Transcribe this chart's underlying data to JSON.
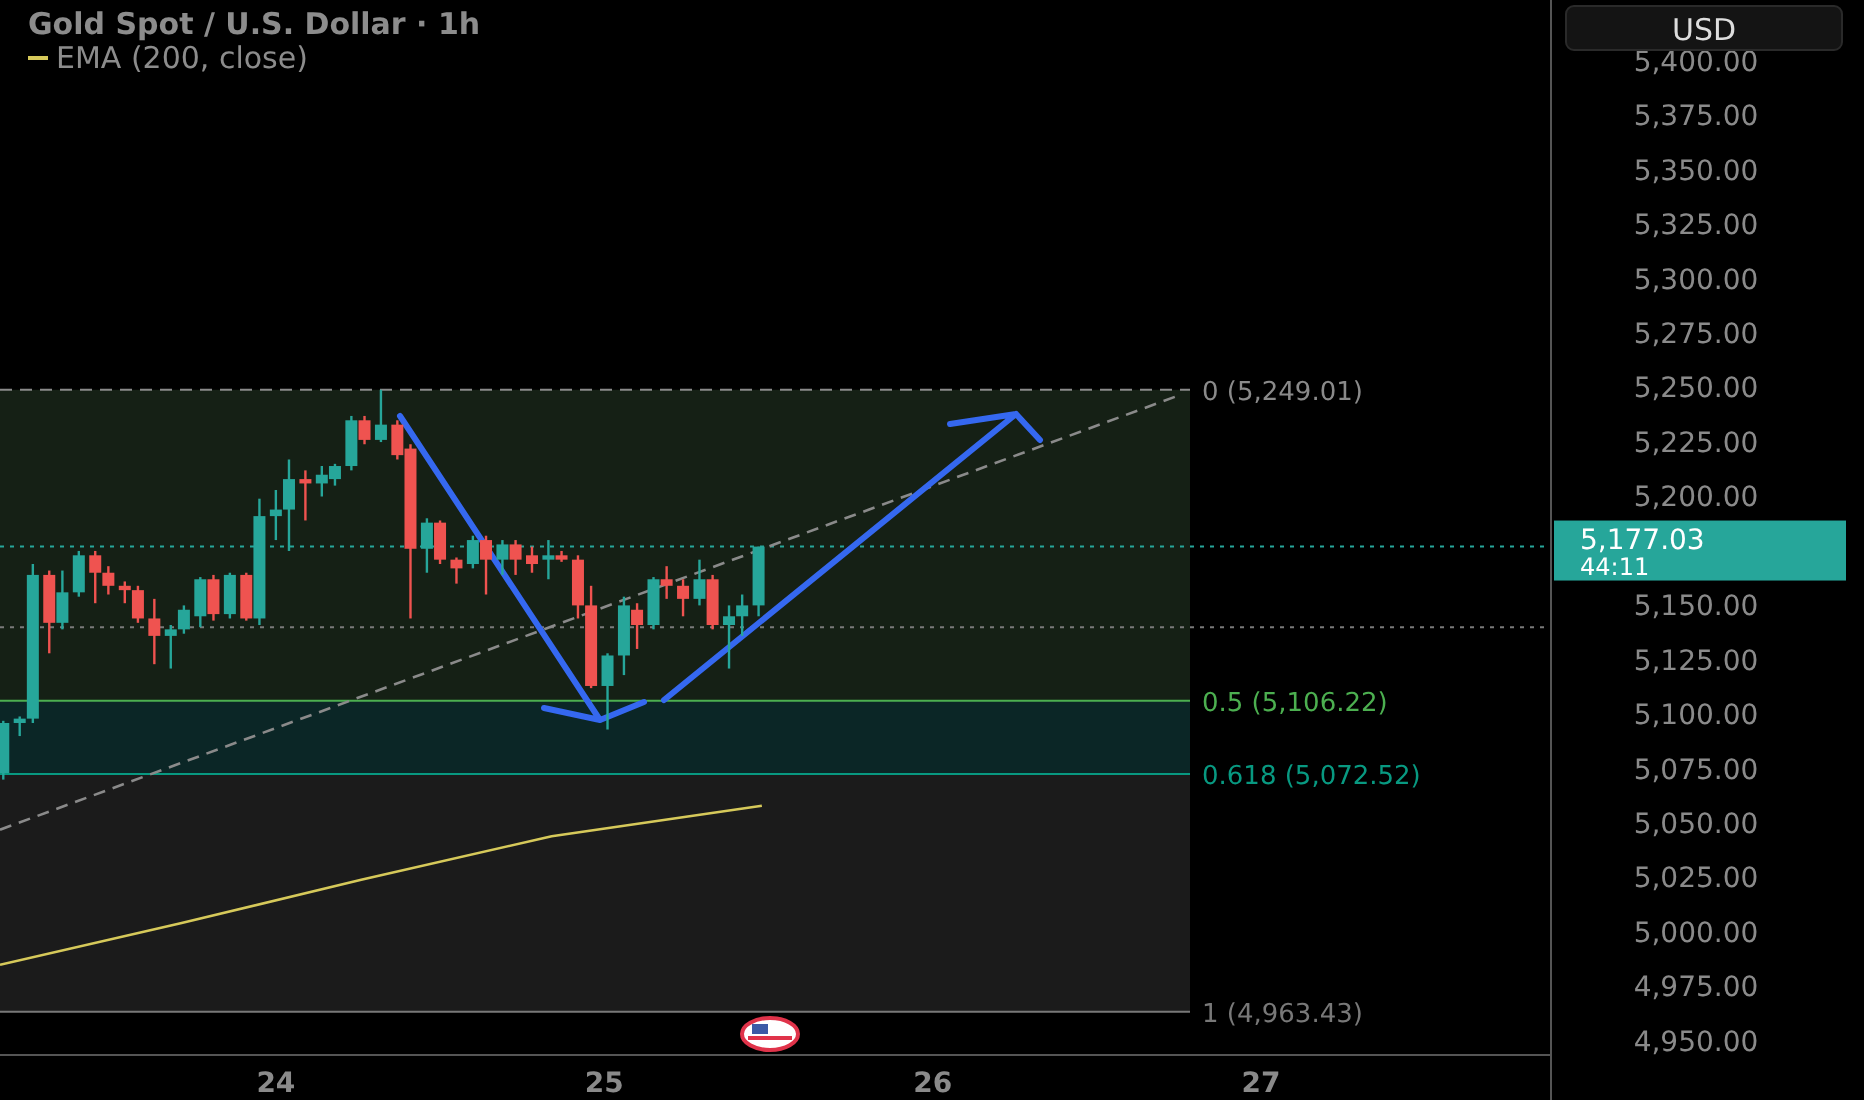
{
  "chart_data": {
    "type": "candlestick",
    "title": "Gold Spot / U.S. Dollar · 1h",
    "ylabel": "USD",
    "x": [
      23.17,
      23.22,
      23.26,
      23.31,
      23.35,
      23.4,
      23.45,
      23.49,
      23.54,
      23.58,
      23.63,
      23.68,
      23.72,
      23.77,
      23.81,
      23.86,
      23.91,
      23.95,
      24.0,
      24.04,
      24.09,
      24.14,
      24.18,
      24.23,
      24.27,
      24.32,
      24.37,
      24.41,
      24.46,
      24.5,
      24.55,
      24.6,
      24.64,
      24.69,
      24.73,
      24.78,
      24.83,
      24.87,
      24.92,
      24.96,
      25.01,
      25.06,
      25.1,
      25.15,
      25.19,
      25.24,
      25.29,
      25.33,
      25.38,
      25.42,
      25.47
    ],
    "ohlc": [
      [
        5073,
        5097,
        5070,
        5096
      ],
      [
        5096,
        5099,
        5090,
        5098
      ],
      [
        5098,
        5169,
        5096,
        5164
      ],
      [
        5164,
        5166,
        5128,
        5142
      ],
      [
        5142,
        5166,
        5139,
        5156
      ],
      [
        5156,
        5175,
        5154,
        5173
      ],
      [
        5173,
        5175,
        5151,
        5165
      ],
      [
        5165,
        5168,
        5155,
        5159
      ],
      [
        5159,
        5161,
        5151,
        5157
      ],
      [
        5157,
        5159,
        5142,
        5144
      ],
      [
        5144,
        5153,
        5123,
        5136
      ],
      [
        5136,
        5141,
        5121,
        5139
      ],
      [
        5139,
        5150,
        5137,
        5148
      ],
      [
        5145,
        5163,
        5140,
        5162
      ],
      [
        5162,
        5164,
        5143,
        5146
      ],
      [
        5146,
        5165,
        5144,
        5164
      ],
      [
        5164,
        5165,
        5143,
        5144
      ],
      [
        5144,
        5199,
        5141,
        5191
      ],
      [
        5191,
        5203,
        5180,
        5194
      ],
      [
        5194,
        5217,
        5175,
        5208
      ],
      [
        5208,
        5212,
        5189,
        5206
      ],
      [
        5206,
        5214,
        5200,
        5210
      ],
      [
        5208,
        5215,
        5205,
        5214
      ],
      [
        5214,
        5237,
        5212,
        5235
      ],
      [
        5235,
        5237,
        5224,
        5226
      ],
      [
        5226,
        5249,
        5225,
        5233
      ],
      [
        5233,
        5235,
        5217,
        5219
      ],
      [
        5222,
        5224,
        5144,
        5176
      ],
      [
        5176,
        5190,
        5165,
        5188
      ],
      [
        5188,
        5189,
        5169,
        5171
      ],
      [
        5171,
        5172,
        5160,
        5167
      ],
      [
        5169,
        5182,
        5167,
        5180
      ],
      [
        5180,
        5182,
        5155,
        5171
      ],
      [
        5171,
        5180,
        5164,
        5178
      ],
      [
        5178,
        5180,
        5164,
        5171
      ],
      [
        5173,
        5177,
        5165,
        5169
      ],
      [
        5171,
        5180,
        5162,
        5173
      ],
      [
        5173,
        5175,
        5170,
        5171
      ],
      [
        5171,
        5173,
        5144,
        5150
      ],
      [
        5150,
        5159,
        5112,
        5113
      ],
      [
        5113,
        5128,
        5093,
        5127
      ],
      [
        5127,
        5154,
        5118,
        5150
      ],
      [
        5148,
        5151,
        5130,
        5141
      ],
      [
        5141,
        5163,
        5139,
        5162
      ],
      [
        5162,
        5168,
        5153,
        5159
      ],
      [
        5159,
        5162,
        5145,
        5153
      ],
      [
        5153,
        5171,
        5150,
        5162
      ],
      [
        5162,
        5164,
        5139,
        5141
      ],
      [
        5141,
        5150,
        5121,
        5145
      ],
      [
        5145,
        5155,
        5136,
        5150
      ],
      [
        5150,
        5177,
        5145,
        5177
      ]
    ],
    "series": [
      {
        "type": "line",
        "name": "EMA (200, close)",
        "color": "#d6c95a",
        "x": [
          23.16,
          23.71,
          24.26,
          24.84,
          25.48
        ],
        "values": [
          4985,
          5004,
          5024,
          5044,
          5058
        ]
      },
      {
        "type": "line",
        "color": "#8a8a8a",
        "line_style": "dashed",
        "x": [
          23.16,
          26.76
        ],
        "values": [
          5047,
          5247
        ]
      }
    ],
    "xlim": [
      23.16,
      27.88
    ],
    "xticks": [
      24,
      25,
      26,
      27
    ],
    "ylim": [
      4944,
      5428
    ],
    "yticks": [
      {
        "value": 4950,
        "label": "4,950.00"
      },
      {
        "value": 4975,
        "label": "4,975.00"
      },
      {
        "value": 5000,
        "label": "5,000.00"
      },
      {
        "value": 5025,
        "label": "5,025.00"
      },
      {
        "value": 5050,
        "label": "5,050.00"
      },
      {
        "value": 5075,
        "label": "5,075.00"
      },
      {
        "value": 5100,
        "label": "5,100.00"
      },
      {
        "value": 5125,
        "label": "5,125.00"
      },
      {
        "value": 5150,
        "label": "5,150.00"
      },
      {
        "value": 5200,
        "label": "5,200.00"
      },
      {
        "value": 5225,
        "label": "5,225.00"
      },
      {
        "value": 5250,
        "label": "5,250.00"
      },
      {
        "value": 5275,
        "label": "5,275.00"
      },
      {
        "value": 5300,
        "label": "5,300.00"
      },
      {
        "value": 5325,
        "label": "5,325.00"
      },
      {
        "value": 5350,
        "label": "5,350.00"
      },
      {
        "value": 5375,
        "label": "5,375.00"
      },
      {
        "value": 5400,
        "label": "5,400.00"
      }
    ],
    "bands": [
      {
        "axis": "y",
        "from": 5106.22,
        "to": 5249.01,
        "color": "#152015"
      },
      {
        "axis": "y",
        "from": 5072.52,
        "to": 5106.22,
        "color": "#0b2626"
      },
      {
        "axis": "y",
        "from": 4963.43,
        "to": 5072.52,
        "color": "#1b1b1b"
      }
    ],
    "ref_lines": [
      {
        "axis": "y",
        "value": 5249.01,
        "label": "0 (5,249.01)",
        "color": "#8a8a8a",
        "line_style": "dashed"
      },
      {
        "axis": "y",
        "value": 5106.22,
        "label": "0.5 (5,106.22)",
        "color": "#4caf50"
      },
      {
        "axis": "y",
        "value": 5072.52,
        "label": "0.618 (5,072.52)",
        "color": "#089981"
      },
      {
        "axis": "y",
        "value": 4963.43,
        "label": "1 (4,963.43)",
        "color": "#787878"
      },
      {
        "axis": "y",
        "value": 5140,
        "color": "#7a7a7a",
        "line_style": "dotted"
      },
      {
        "axis": "y",
        "value": 5177.03,
        "label": "5,177.03",
        "color": "#26a69a",
        "line_style": "dotted"
      }
    ],
    "annotations": [
      "44:11"
    ],
    "legend": "top left"
  }
}
